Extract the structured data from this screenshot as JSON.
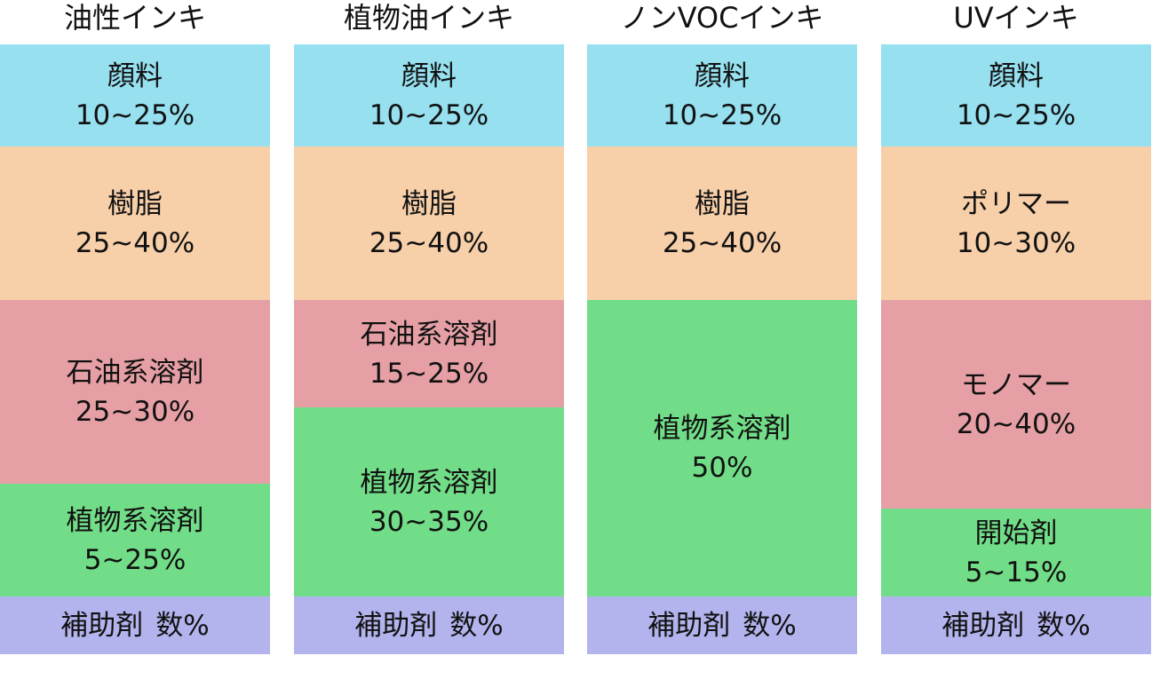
{
  "columns": [
    {
      "title": "油性インキ",
      "segments": [
        {
          "label": "顔料",
          "value": "10~25%"
        },
        {
          "label": "樹脂",
          "value": "25~40%"
        },
        {
          "label": "石油系溶剤",
          "value": "25~30%"
        },
        {
          "label": "植物系溶剤",
          "value": "5~25%"
        },
        {
          "label": "補助剤",
          "value": "数%"
        }
      ]
    },
    {
      "title": "植物油インキ",
      "segments": [
        {
          "label": "顔料",
          "value": "10~25%"
        },
        {
          "label": "樹脂",
          "value": "25~40%"
        },
        {
          "label": "石油系溶剤",
          "value": "15~25%"
        },
        {
          "label": "植物系溶剤",
          "value": "30~35%"
        },
        {
          "label": "補助剤",
          "value": "数%"
        }
      ]
    },
    {
      "title": "ノンVOCインキ",
      "segments": [
        {
          "label": "顔料",
          "value": "10~25%"
        },
        {
          "label": "樹脂",
          "value": "25~40%"
        },
        {
          "label": "植物系溶剤",
          "value": "50%"
        },
        {
          "label": "補助剤",
          "value": "数%"
        }
      ]
    },
    {
      "title": "UVインキ",
      "segments": [
        {
          "label": "顔料",
          "value": "10~25%"
        },
        {
          "label": "ポリマー",
          "value": "10~30%"
        },
        {
          "label": "モノマー",
          "value": "20~40%"
        },
        {
          "label": "開始剤",
          "value": "5~15%"
        },
        {
          "label": "補助剤",
          "value": "数%"
        }
      ]
    }
  ]
}
